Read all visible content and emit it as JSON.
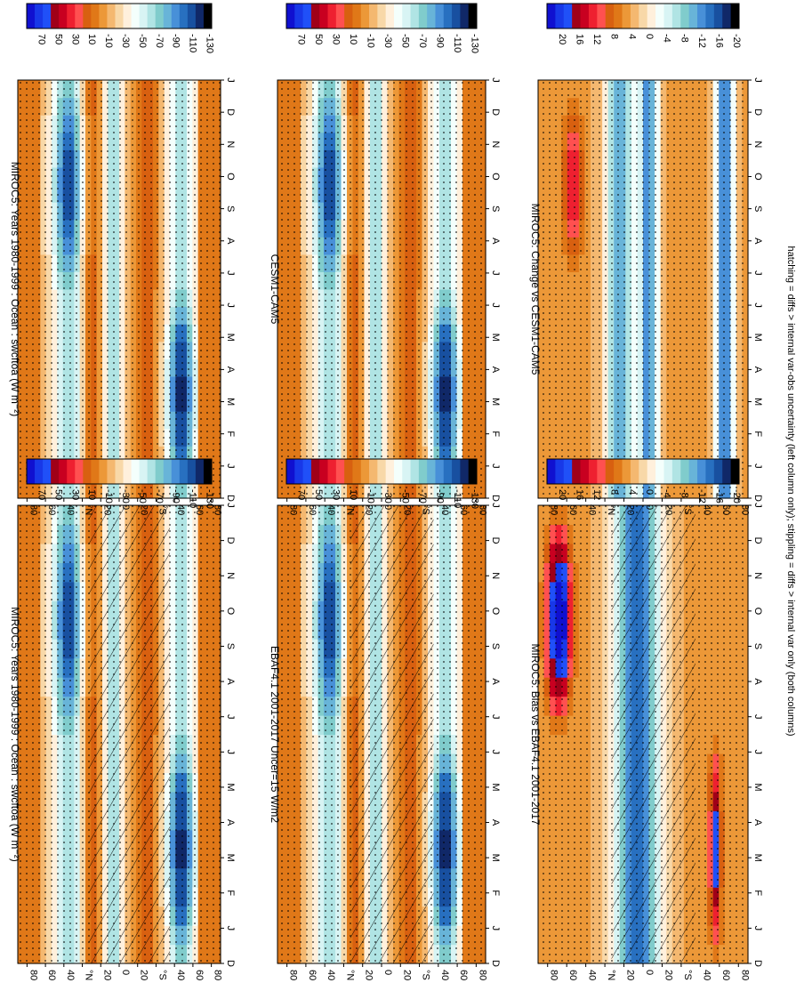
{
  "figure_note": "hatching = diffs > internal var-obs uncertainty (left column only); stippling = diffs > internal var only (both columns)",
  "months": [
    "D",
    "J",
    "F",
    "M",
    "A",
    "M",
    "J",
    "J",
    "A",
    "S",
    "O",
    "N",
    "D",
    "J"
  ],
  "lat_ticks": [
    "80",
    "60",
    "40",
    "°N",
    "20",
    "0",
    "20",
    "°S",
    "40",
    "60",
    "80"
  ],
  "scales": {
    "absolute": {
      "labels": [
        "70",
        "50",
        "30",
        "10",
        "-10",
        "-30",
        "-50",
        "-70",
        "-90",
        "-110",
        "-130"
      ],
      "colors": [
        "#1010d0",
        "#1838e8",
        "#2050f8",
        "#a00018",
        "#c80020",
        "#ee2030",
        "#ff5050",
        "#d86010",
        "#e07818",
        "#ec9838",
        "#f4b870",
        "#f8d8a8",
        "#fff0dc",
        "#f4fffc",
        "#d8f4f4",
        "#b0e4e4",
        "#80cccc",
        "#68b4d8",
        "#4890d8",
        "#2870c0",
        "#1850a0",
        "#102868",
        "#000000"
      ]
    },
    "difference": {
      "labels": [
        "20",
        "16",
        "12",
        "8",
        "4",
        "0",
        "-4",
        "-8",
        "-12",
        "-16",
        "-20"
      ],
      "colors": [
        "#1010d0",
        "#1838e8",
        "#2050f8",
        "#a00018",
        "#c80020",
        "#ee2030",
        "#ff5050",
        "#d86010",
        "#e07818",
        "#ec9838",
        "#f4b870",
        "#f8d8a8",
        "#fff0dc",
        "#f4fffc",
        "#d8f4f4",
        "#b0e4e4",
        "#80cccc",
        "#68b4d8",
        "#4890d8",
        "#2870c0",
        "#1850a0",
        "#102868",
        "#000000"
      ]
    }
  },
  "chart_data": [
    {
      "type": "heatmap",
      "title": "MIROC5: Years 1980-1999 : Ocean : swcftoa (W m⁻²)",
      "variable": "swcftoa",
      "units": "W m-2",
      "x": "month",
      "y": "latitude",
      "xrange": [
        "D",
        "J"
      ],
      "ylim": [
        -90,
        90
      ],
      "scale": "absolute",
      "hatching": true,
      "stippling": true,
      "extremes": {
        "min": -130,
        "max": -10
      }
    },
    {
      "type": "heatmap",
      "title": "EBAF4.1 2001-2017 Uncer=15 W/m2",
      "variable": "swcftoa",
      "units": "W m-2",
      "x": "month",
      "y": "latitude",
      "xrange": [
        "D",
        "J"
      ],
      "ylim": [
        -90,
        90
      ],
      "scale": "absolute",
      "hatching": true,
      "stippling": true,
      "extremes": {
        "min": -130,
        "max": -10
      }
    },
    {
      "type": "heatmap",
      "title": "MIROC5: Bias vs EBAF4.1 2001-2017",
      "variable": "swcftoa difference",
      "units": "W m-2",
      "x": "month",
      "y": "latitude",
      "xrange": [
        "D",
        "J"
      ],
      "ylim": [
        -90,
        90
      ],
      "scale": "difference",
      "hatching": true,
      "stippling": true,
      "extremes": {
        "min": -20,
        "max": 20
      }
    },
    {
      "type": "heatmap",
      "title": "MIROC5: Years 1980-1999 : Ocean : swcftoa (W m⁻²)",
      "variable": "swcftoa",
      "units": "W m-2",
      "x": "month",
      "y": "latitude",
      "xrange": [
        "D",
        "J"
      ],
      "ylim": [
        -90,
        90
      ],
      "scale": "absolute",
      "hatching": false,
      "stippling": true,
      "extremes": {
        "min": -130,
        "max": -10
      }
    },
    {
      "type": "heatmap",
      "title": "CESM1-CAM5",
      "variable": "swcftoa",
      "units": "W m-2",
      "x": "month",
      "y": "latitude",
      "xrange": [
        "D",
        "J"
      ],
      "ylim": [
        -90,
        90
      ],
      "scale": "absolute",
      "hatching": false,
      "stippling": true,
      "extremes": {
        "min": -130,
        "max": -10
      }
    },
    {
      "type": "heatmap",
      "title": "MIROC5: Change vs CESM1-CAM5",
      "variable": "swcftoa difference",
      "units": "W m-2",
      "x": "month",
      "y": "latitude",
      "xrange": [
        "D",
        "J"
      ],
      "ylim": [
        -90,
        90
      ],
      "scale": "difference",
      "hatching": false,
      "stippling": true,
      "extremes": {
        "min": -20,
        "max": 20
      }
    }
  ]
}
